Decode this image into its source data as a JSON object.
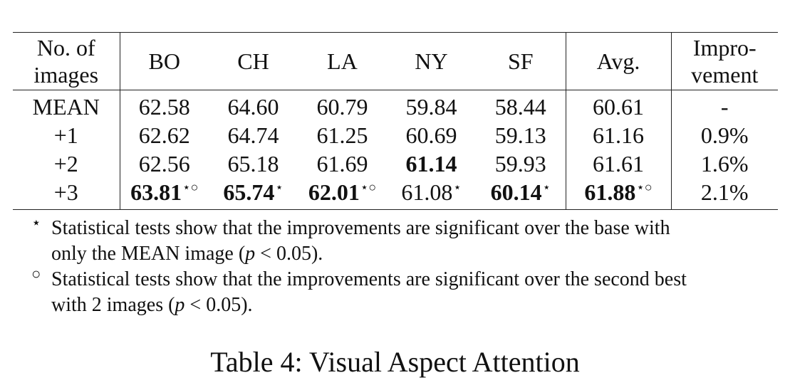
{
  "table": {
    "headers": {
      "col0_line1": "No. of",
      "col0_line2": "images",
      "bo": "BO",
      "ch": "CH",
      "la": "LA",
      "ny": "NY",
      "sf": "SF",
      "avg": "Avg.",
      "impr_line1": "Impro-",
      "impr_line2": "vement"
    },
    "rows": [
      {
        "label": "MEAN",
        "cells": [
          {
            "v": "62.58",
            "m": ""
          },
          {
            "v": "64.60",
            "m": ""
          },
          {
            "v": "60.79",
            "m": ""
          },
          {
            "v": "59.84",
            "m": ""
          },
          {
            "v": "58.44",
            "m": ""
          }
        ],
        "avg": {
          "v": "60.61",
          "m": ""
        },
        "impr": "-"
      },
      {
        "label": "+1",
        "cells": [
          {
            "v": "62.62",
            "m": ""
          },
          {
            "v": "64.74",
            "m": ""
          },
          {
            "v": "61.25",
            "m": ""
          },
          {
            "v": "60.69",
            "m": ""
          },
          {
            "v": "59.13",
            "m": ""
          }
        ],
        "avg": {
          "v": "61.16",
          "m": ""
        },
        "impr": "0.9%"
      },
      {
        "label": "+2",
        "cells": [
          {
            "v": "62.56",
            "m": ""
          },
          {
            "v": "65.18",
            "m": ""
          },
          {
            "v": "61.69",
            "m": ""
          },
          {
            "v": "61.14",
            "m": ""
          },
          {
            "v": "59.93",
            "m": ""
          }
        ],
        "avg": {
          "v": "61.61",
          "m": ""
        },
        "impr": "1.6%"
      },
      {
        "label": "+3",
        "cells": [
          {
            "v": "63.81",
            "m": "⋆○"
          },
          {
            "v": "65.74",
            "m": "⋆"
          },
          {
            "v": "62.01",
            "m": "⋆○"
          },
          {
            "v": "61.08",
            "m": "⋆"
          },
          {
            "v": "60.14",
            "m": "⋆"
          }
        ],
        "avg": {
          "v": "61.88",
          "m": "⋆○"
        },
        "impr": "2.1%"
      }
    ]
  },
  "notes": [
    {
      "mark": "⋆",
      "line1": "Statistical tests show that the improvements are significant over the base with",
      "line2_pre": "only the MEAN image (",
      "p": "p",
      "rel": " < 0.05",
      "line2_post": ")."
    },
    {
      "mark": "○",
      "line1": "Statistical tests show that the improvements are significant over the second best",
      "line2_pre": "with 2 images (",
      "p": "p",
      "rel": " < 0.05",
      "line2_post": ")."
    }
  ],
  "caption": "Table 4: Visual Aspect Attention"
}
